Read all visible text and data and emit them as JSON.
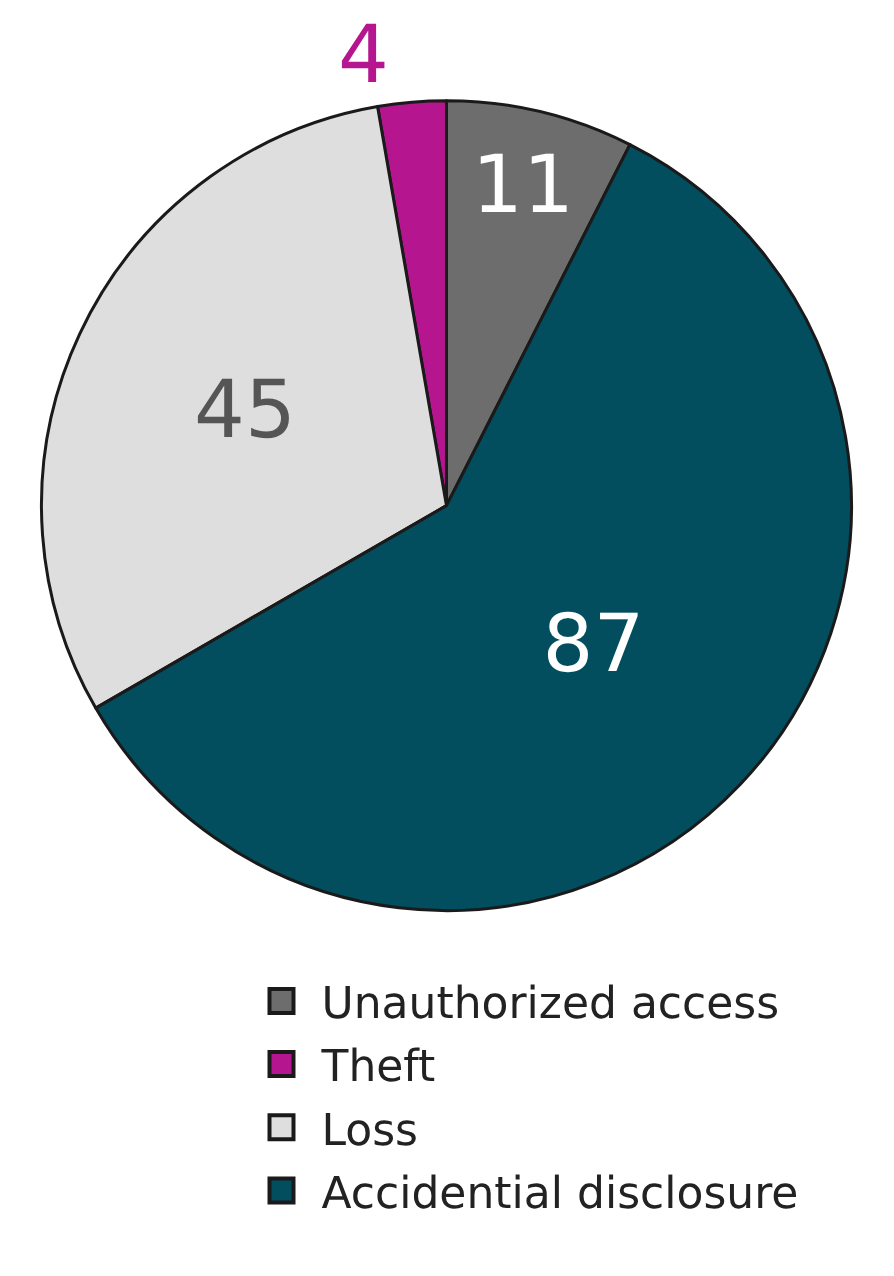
{
  "chart_data": {
    "type": "pie",
    "categories": [
      "Unauthorized access",
      "Theft",
      "Loss",
      "Accidential disclosure"
    ],
    "values": [
      11,
      4,
      45,
      87
    ],
    "colors": [
      "#6d6d6d",
      "#b5158f",
      "#dedede",
      "#024d5e"
    ],
    "data_labels": true,
    "legend": "bottom"
  }
}
